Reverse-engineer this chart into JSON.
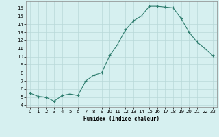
{
  "x": [
    0,
    1,
    2,
    3,
    4,
    5,
    6,
    7,
    8,
    9,
    10,
    11,
    12,
    13,
    14,
    15,
    16,
    17,
    18,
    19,
    20,
    21,
    22,
    23
  ],
  "y": [
    5.5,
    5.1,
    5.0,
    4.5,
    5.2,
    5.4,
    5.2,
    7.0,
    7.7,
    8.0,
    10.1,
    11.5,
    13.3,
    14.4,
    15.0,
    16.2,
    16.2,
    16.1,
    16.0,
    14.7,
    13.0,
    11.8,
    11.0,
    10.1
  ],
  "line_color": "#2e7d6e",
  "marker": "+",
  "marker_size": 3,
  "marker_lw": 0.8,
  "line_width": 0.8,
  "bg_color": "#d6f0f0",
  "grid_color": "#b8d8d8",
  "xlabel": "Humidex (Indice chaleur)",
  "ylabel_ticks": [
    4,
    5,
    6,
    7,
    8,
    9,
    10,
    11,
    12,
    13,
    14,
    15,
    16
  ],
  "ylim": [
    3.8,
    16.8
  ],
  "xlim": [
    -0.5,
    23.5
  ],
  "xticks": [
    0,
    1,
    2,
    3,
    4,
    5,
    6,
    7,
    8,
    9,
    10,
    11,
    12,
    13,
    14,
    15,
    16,
    17,
    18,
    19,
    20,
    21,
    22,
    23
  ],
  "xlabel_fontsize": 5.5,
  "tick_fontsize": 5
}
